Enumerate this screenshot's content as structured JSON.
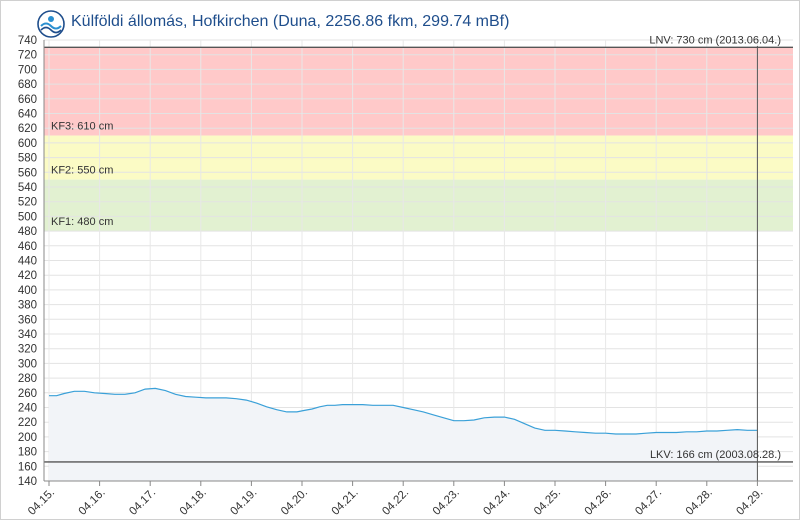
{
  "header": {
    "title": "Külföldi állomás, Hofkirchen (Duna, 2256.86 fkm, 299.74 mBf)",
    "logo_icon": "ovf-logo-icon"
  },
  "chart_data": {
    "type": "area",
    "title": "Külföldi állomás, Hofkirchen (Duna, 2256.86 fkm, 299.74 mBf)",
    "ylim": [
      140,
      740
    ],
    "ytick_step": 20,
    "grid": true,
    "x_ticks": [
      "04.15.",
      "04.16.",
      "04.17.",
      "04.18.",
      "04.19.",
      "04.20.",
      "04.21.",
      "04.22.",
      "04.23.",
      "04.24.",
      "04.25.",
      "04.26.",
      "04.27.",
      "04.28.",
      "04.29."
    ],
    "zones": [
      {
        "name": "KF3",
        "label": "KF3: 610 cm",
        "from": 610,
        "to": 730,
        "color": "#ffc9c9"
      },
      {
        "name": "KF2",
        "label": "KF2: 550 cm",
        "from": 550,
        "to": 610,
        "color": "#fbfbc5"
      },
      {
        "name": "KF1",
        "label": "KF1: 480 cm",
        "from": 480,
        "to": 550,
        "color": "#e2f1d1"
      }
    ],
    "reference_lines": [
      {
        "name": "LNV",
        "label": "LNV: 730 cm (2013.06.04.)",
        "value": 730
      },
      {
        "name": "LKV",
        "label": "LKV: 166 cm (2003.08.28.)",
        "value": 166
      }
    ],
    "series": [
      {
        "color": "#3aa0d8",
        "fill": "#f2f4f8",
        "x": [
          0,
          0.15,
          0.3,
          0.5,
          0.7,
          0.9,
          1.1,
          1.3,
          1.5,
          1.7,
          1.9,
          2.1,
          2.3,
          2.5,
          2.7,
          2.9,
          3.1,
          3.3,
          3.5,
          3.7,
          3.9,
          4.1,
          4.3,
          4.5,
          4.7,
          4.9,
          5.05,
          5.2,
          5.35,
          5.5,
          5.65,
          5.8,
          6.0,
          6.2,
          6.4,
          6.6,
          6.8,
          7.0,
          7.2,
          7.4,
          7.6,
          7.8,
          8.0,
          8.2,
          8.4,
          8.6,
          8.8,
          9.0,
          9.2,
          9.4,
          9.6,
          9.8,
          10.0,
          10.2,
          10.4,
          10.6,
          10.8,
          11.0,
          11.2,
          11.4,
          11.6,
          11.8,
          12.0,
          12.2,
          12.4,
          12.6,
          12.8,
          13.0,
          13.2,
          13.4,
          13.6,
          13.8,
          14.0
        ],
        "values": [
          256,
          256,
          259,
          262,
          262,
          260,
          259,
          258,
          258,
          260,
          265,
          266,
          263,
          258,
          255,
          254,
          253,
          253,
          253,
          252,
          250,
          246,
          241,
          237,
          234,
          234,
          236,
          238,
          241,
          243,
          243,
          244,
          244,
          244,
          243,
          243,
          243,
          240,
          237,
          234,
          230,
          226,
          222,
          222,
          223,
          226,
          227,
          227,
          224,
          218,
          212,
          209,
          209,
          208,
          207,
          206,
          205,
          205,
          204,
          204,
          204,
          205,
          206,
          206,
          206,
          207,
          207,
          208,
          208,
          209,
          210,
          209,
          209
        ]
      }
    ]
  }
}
